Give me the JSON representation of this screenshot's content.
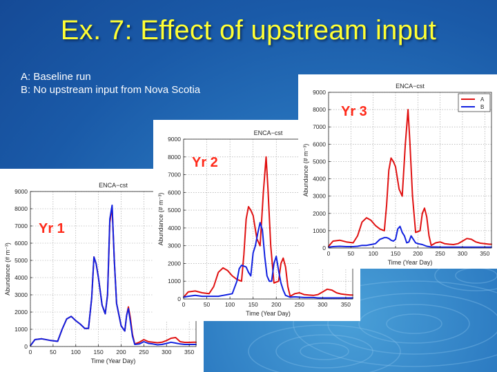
{
  "slide": {
    "title": "Ex. 7: Effect of upstream input",
    "legend_a": "A: Baseline run",
    "legend_b": "B: No upstream input from Nova Scotia",
    "colors": {
      "title": "#ffff33",
      "background": "#1a5aa8",
      "series_a": "#e01010",
      "series_b": "#1020e0",
      "year_label": "#ff2a1a"
    }
  },
  "chart_data": [
    {
      "id": "yr1",
      "type": "line",
      "year_label": "Yr 1",
      "title": "ENCA−cst",
      "xlabel": "Time (Year Day)",
      "ylabel": "Abundance (# m⁻³)",
      "xlim": [
        0,
        365
      ],
      "ylim": [
        0,
        9000
      ],
      "xticks": [
        0,
        50,
        100,
        150,
        200,
        250,
        300,
        350
      ],
      "yticks": [
        0,
        1000,
        2000,
        3000,
        4000,
        5000,
        6000,
        7000,
        8000,
        9000
      ],
      "grid": true,
      "series": [
        {
          "name": "A",
          "color": "#e01010",
          "x": [
            0,
            10,
            25,
            45,
            60,
            70,
            80,
            90,
            100,
            110,
            120,
            128,
            135,
            140,
            145,
            150,
            158,
            165,
            170,
            175,
            180,
            185,
            190,
            200,
            208,
            212,
            216,
            220,
            225,
            230,
            240,
            250,
            260,
            270,
            280,
            290,
            300,
            310,
            320,
            330,
            340,
            350,
            360,
            365
          ],
          "y": [
            50,
            400,
            450,
            350,
            300,
            1000,
            1600,
            1750,
            1500,
            1300,
            1050,
            1050,
            2800,
            5200,
            4800,
            4000,
            2400,
            1900,
            3000,
            7200,
            8100,
            5000,
            2500,
            1200,
            900,
            1800,
            2300,
            1700,
            700,
            150,
            250,
            400,
            280,
            250,
            220,
            250,
            350,
            480,
            520,
            280,
            240,
            240,
            250,
            250
          ]
        },
        {
          "name": "B",
          "color": "#1020e0",
          "x": [
            0,
            10,
            25,
            45,
            60,
            70,
            80,
            90,
            100,
            110,
            120,
            128,
            135,
            140,
            145,
            150,
            158,
            165,
            170,
            175,
            180,
            185,
            190,
            200,
            208,
            212,
            216,
            220,
            225,
            230,
            240,
            250,
            260,
            270,
            280,
            290,
            300,
            310,
            320,
            330,
            340,
            350,
            360,
            365
          ],
          "y": [
            50,
            400,
            450,
            350,
            300,
            1000,
            1600,
            1750,
            1500,
            1300,
            1050,
            1050,
            2800,
            5200,
            4800,
            4000,
            2400,
            1900,
            3000,
            7400,
            8200,
            5000,
            2500,
            1200,
            900,
            1800,
            2200,
            1500,
            600,
            120,
            150,
            280,
            180,
            150,
            100,
            120,
            180,
            250,
            200,
            150,
            120,
            120,
            120,
            120
          ]
        }
      ]
    },
    {
      "id": "yr2",
      "type": "line",
      "year_label": "Yr 2",
      "title": "ENCA−cst",
      "xlabel": "Time (Year Day)",
      "ylabel": "Abundance (# m⁻³)",
      "xlim": [
        0,
        365
      ],
      "ylim": [
        0,
        9000
      ],
      "xticks": [
        0,
        50,
        100,
        150,
        200,
        250,
        300,
        350
      ],
      "yticks": [
        0,
        1000,
        2000,
        3000,
        4000,
        5000,
        6000,
        7000,
        8000,
        9000
      ],
      "grid": true,
      "series": [
        {
          "name": "A",
          "color": "#e01010",
          "x": [
            0,
            10,
            25,
            40,
            55,
            65,
            75,
            85,
            95,
            105,
            115,
            125,
            130,
            135,
            140,
            145,
            150,
            158,
            165,
            172,
            178,
            182,
            188,
            195,
            205,
            210,
            215,
            220,
            225,
            230,
            240,
            250,
            260,
            270,
            280,
            290,
            300,
            310,
            320,
            330,
            340,
            350,
            360,
            365
          ],
          "y": [
            100,
            400,
            450,
            350,
            300,
            700,
            1500,
            1750,
            1600,
            1300,
            1100,
            1000,
            2500,
            4500,
            5200,
            5000,
            4700,
            3400,
            3000,
            6000,
            8000,
            6200,
            3000,
            900,
            1000,
            2000,
            2300,
            1800,
            700,
            150,
            300,
            350,
            250,
            220,
            200,
            250,
            400,
            550,
            500,
            350,
            280,
            250,
            220,
            220
          ]
        },
        {
          "name": "B",
          "color": "#1020e0",
          "x": [
            0,
            10,
            25,
            40,
            55,
            65,
            75,
            85,
            95,
            105,
            115,
            120,
            125,
            130,
            135,
            140,
            145,
            150,
            155,
            160,
            165,
            170,
            175,
            180,
            185,
            190,
            195,
            200,
            205,
            210,
            215,
            220,
            230,
            240,
            250,
            260,
            270,
            280,
            290,
            300,
            320,
            340,
            365
          ],
          "y": [
            100,
            150,
            200,
            150,
            150,
            150,
            150,
            200,
            250,
            300,
            1000,
            1700,
            1900,
            1850,
            1800,
            1500,
            1300,
            2600,
            3000,
            3700,
            4300,
            3900,
            2400,
            1300,
            1000,
            1000,
            2000,
            2400,
            1600,
            900,
            500,
            200,
            100,
            120,
            100,
            80,
            80,
            80,
            60,
            60,
            60,
            60,
            60
          ]
        }
      ]
    },
    {
      "id": "yr3",
      "type": "line",
      "year_label": "Yr 3",
      "title": "ENCA−cst",
      "xlabel": "Time (Year Day)",
      "ylabel": "Abundance (# m⁻³)",
      "xlim": [
        0,
        365
      ],
      "ylim": [
        0,
        9000
      ],
      "xticks": [
        0,
        50,
        100,
        150,
        200,
        250,
        300,
        350
      ],
      "yticks": [
        0,
        1000,
        2000,
        3000,
        4000,
        5000,
        6000,
        7000,
        8000,
        9000
      ],
      "grid": true,
      "legend": {
        "position": "top-right",
        "entries": [
          "A",
          "B"
        ]
      },
      "series": [
        {
          "name": "A",
          "color": "#e01010",
          "x": [
            0,
            10,
            25,
            40,
            55,
            65,
            75,
            85,
            95,
            105,
            115,
            125,
            130,
            135,
            140,
            145,
            150,
            158,
            165,
            172,
            178,
            182,
            188,
            195,
            205,
            210,
            215,
            220,
            225,
            230,
            240,
            250,
            260,
            270,
            280,
            290,
            300,
            310,
            320,
            330,
            340,
            350,
            360,
            365
          ],
          "y": [
            100,
            400,
            450,
            350,
            300,
            700,
            1500,
            1750,
            1600,
            1300,
            1100,
            1000,
            2500,
            4500,
            5200,
            5000,
            4700,
            3400,
            3000,
            6000,
            8000,
            6200,
            3000,
            900,
            1000,
            2000,
            2300,
            1800,
            700,
            150,
            300,
            350,
            250,
            220,
            200,
            250,
            400,
            550,
            500,
            350,
            280,
            250,
            220,
            220
          ]
        },
        {
          "name": "B",
          "color": "#1020e0",
          "x": [
            0,
            10,
            25,
            40,
            55,
            65,
            75,
            85,
            95,
            105,
            115,
            125,
            130,
            135,
            140,
            145,
            150,
            155,
            160,
            165,
            170,
            175,
            180,
            185,
            190,
            195,
            200,
            210,
            220,
            230,
            240,
            250,
            260,
            270,
            280,
            290,
            300,
            310,
            320,
            330,
            340,
            350,
            365
          ],
          "y": [
            50,
            80,
            100,
            80,
            80,
            100,
            150,
            150,
            200,
            250,
            500,
            600,
            600,
            550,
            450,
            400,
            500,
            1100,
            1250,
            900,
            700,
            300,
            350,
            700,
            500,
            300,
            250,
            200,
            100,
            60,
            60,
            50,
            50,
            50,
            50,
            50,
            50,
            50,
            50,
            50,
            50,
            50,
            50
          ]
        }
      ]
    }
  ]
}
